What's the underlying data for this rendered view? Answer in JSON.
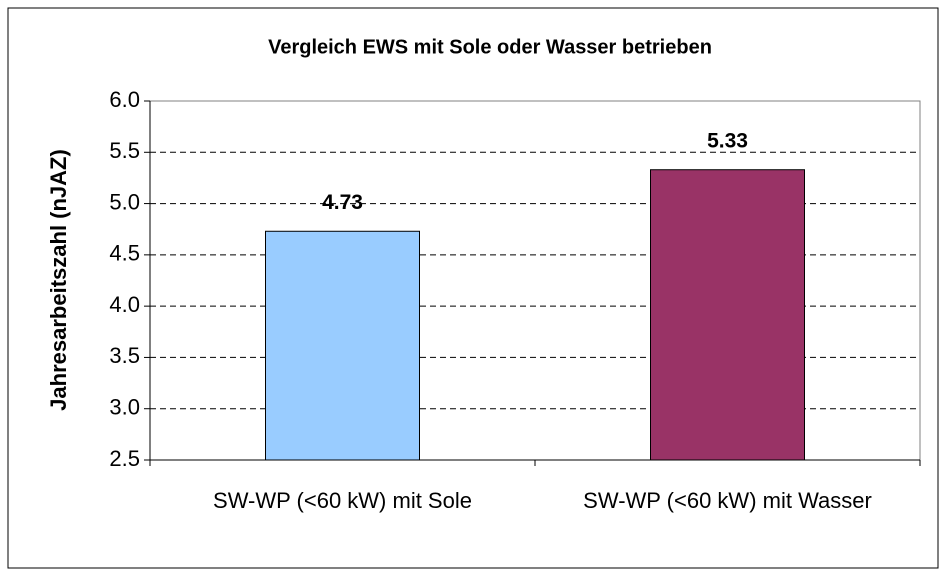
{
  "chart_data": {
    "type": "bar",
    "title": "Vergleich EWS mit Sole oder Wasser betrieben",
    "y_label": "Jahresarbeitszahl (nJAZ)",
    "categories": [
      "SW-WP (<60 kW) mit Sole",
      "SW-WP (<60 kW) mit Wasser"
    ],
    "values": [
      4.73,
      5.33
    ],
    "colors": [
      "#99ccff",
      "#993366"
    ],
    "ylim": [
      2.5,
      6.0
    ],
    "yticks": [
      2.5,
      {
        "value": 3,
        "label": "3.0"
      },
      3.5,
      {
        "value": 4,
        "label": "4.0"
      },
      4.5,
      {
        "value": 5,
        "label": "5.0"
      },
      5.5,
      {
        "value": 6,
        "label": "6.0"
      }
    ],
    "grid": true
  }
}
